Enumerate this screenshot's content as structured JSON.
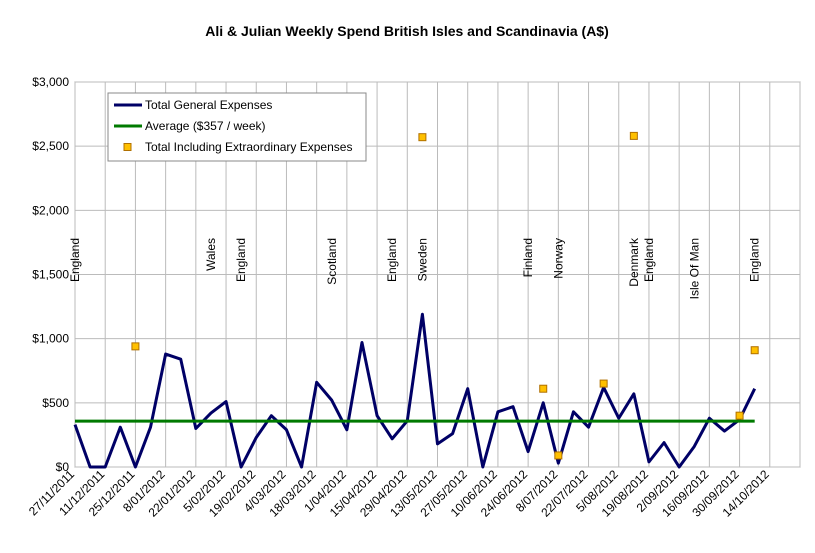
{
  "chart_data": {
    "type": "line",
    "title": "Ali & Julian Weekly Spend British Isles and Scandinavia (A$)",
    "categories": [
      "27/11/2011",
      null,
      "11/12/2011",
      null,
      "25/12/2011",
      null,
      "8/01/2012",
      null,
      "22/01/2012",
      null,
      "5/02/2012",
      null,
      "19/02/2012",
      null,
      "4/03/2012",
      null,
      "18/03/2012",
      null,
      "1/04/2012",
      null,
      "15/04/2012",
      null,
      "29/04/2012",
      null,
      "13/05/2012",
      null,
      "27/05/2012",
      null,
      "10/06/2012",
      null,
      "24/06/2012",
      null,
      "8/07/2012",
      null,
      "22/07/2012",
      null,
      "5/08/2012",
      null,
      "19/08/2012",
      null,
      "2/09/2012",
      null,
      "16/09/2012",
      null,
      "30/09/2012",
      null,
      "14/10/2012",
      null
    ],
    "series": [
      {
        "name": "Total General Expenses",
        "color": "#000066",
        "style": "line",
        "values": [
          330,
          0,
          0,
          310,
          0,
          310,
          880,
          840,
          300,
          420,
          510,
          0,
          230,
          400,
          290,
          0,
          660,
          520,
          290,
          970,
          400,
          220,
          360,
          1190,
          180,
          260,
          610,
          0,
          430,
          470,
          120,
          500,
          30,
          430,
          310,
          620,
          380,
          570,
          40,
          190,
          0,
          160,
          380,
          280,
          370,
          610,
          null,
          null
        ]
      },
      {
        "name": "Average ($357 / week)",
        "color": "#007a00",
        "style": "line",
        "values": [
          357,
          357,
          357,
          357,
          357,
          357,
          357,
          357,
          357,
          357,
          357,
          357,
          357,
          357,
          357,
          357,
          357,
          357,
          357,
          357,
          357,
          357,
          357,
          357,
          357,
          357,
          357,
          357,
          357,
          357,
          357,
          357,
          357,
          357,
          357,
          357,
          357,
          357,
          357,
          357,
          357,
          357,
          357,
          357,
          357,
          357,
          null,
          null
        ]
      },
      {
        "name": "Total Including Extraordinary Expenses",
        "color": "#ffc000",
        "style": "marker",
        "values": [
          null,
          null,
          null,
          null,
          940,
          null,
          null,
          null,
          null,
          null,
          null,
          null,
          null,
          null,
          null,
          null,
          null,
          null,
          null,
          null,
          null,
          null,
          null,
          2570,
          null,
          null,
          null,
          null,
          null,
          null,
          null,
          610,
          90,
          null,
          null,
          650,
          null,
          2580,
          null,
          null,
          null,
          null,
          null,
          null,
          400,
          910,
          null,
          null
        ]
      }
    ],
    "annotations": [
      {
        "text": "England",
        "at": 0
      },
      {
        "text": "Wales",
        "at": 9
      },
      {
        "text": "England",
        "at": 11
      },
      {
        "text": "Scotland",
        "at": 17
      },
      {
        "text": "England",
        "at": 21
      },
      {
        "text": "Sweden",
        "at": 23
      },
      {
        "text": "Finland",
        "at": 30
      },
      {
        "text": "Norway",
        "at": 32
      },
      {
        "text": "Denmark",
        "at": 37
      },
      {
        "text": "England",
        "at": 38
      },
      {
        "text": "Isle Of Man",
        "at": 41
      },
      {
        "text": "England",
        "at": 45
      }
    ],
    "ylim": [
      0,
      3000
    ],
    "yticks": [
      {
        "value": 0,
        "label": "$0"
      },
      {
        "value": 500,
        "label": "$500"
      },
      {
        "value": 1000,
        "label": "$1,000"
      },
      {
        "value": 1500,
        "label": "$1,500"
      },
      {
        "value": 2000,
        "label": "$2,000"
      },
      {
        "value": 2500,
        "label": "$2,500"
      },
      {
        "value": 3000,
        "label": "$3,000"
      }
    ],
    "grid": true,
    "legend": "top-left"
  }
}
